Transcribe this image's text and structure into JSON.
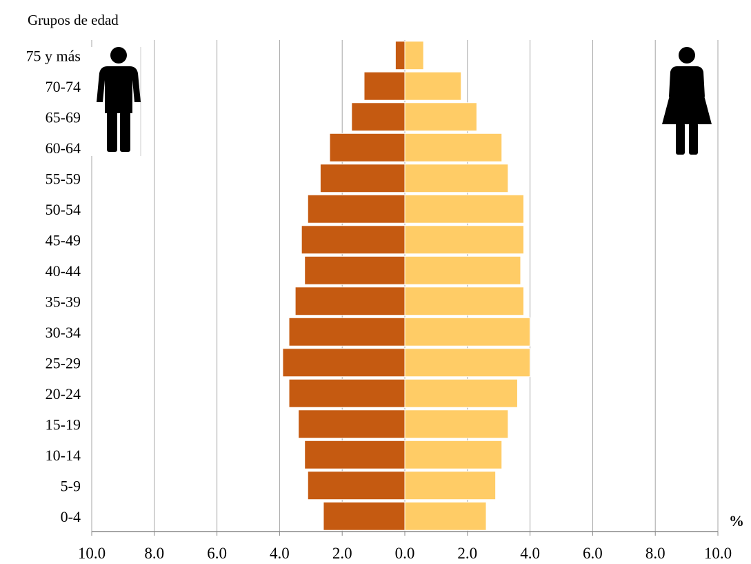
{
  "chart_data": {
    "type": "bar",
    "orientation": "horizontal-pyramid",
    "ylabel": "Grupos de edad",
    "xlabel": "%",
    "categories": [
      "0-4",
      "5-9",
      "10-14",
      "15-19",
      "20-24",
      "25-29",
      "30-34",
      "35-39",
      "40-44",
      "45-49",
      "50-54",
      "55-59",
      "60-64",
      "65-69",
      "70-74",
      "75 y más"
    ],
    "series": [
      {
        "side": "left",
        "color": "#C55A11",
        "values": [
          2.6,
          3.1,
          3.2,
          3.4,
          3.7,
          3.9,
          3.7,
          3.5,
          3.2,
          3.3,
          3.1,
          2.7,
          2.4,
          1.7,
          1.3,
          0.3
        ]
      },
      {
        "side": "right",
        "color": "#FFCC66",
        "values": [
          2.6,
          2.9,
          3.1,
          3.3,
          3.6,
          4.0,
          4.0,
          3.8,
          3.7,
          3.8,
          3.8,
          3.3,
          3.1,
          2.3,
          1.8,
          0.6
        ]
      }
    ],
    "xlim": [
      -10,
      10
    ],
    "xticks": [
      "10.0",
      "8.0",
      "6.0",
      "4.0",
      "2.0",
      "0.0",
      "2.0",
      "4.0",
      "6.0",
      "8.0",
      "10.0"
    ],
    "grid": true,
    "icons": {
      "left": "male-figure-icon",
      "right": "female-figure-icon"
    }
  }
}
